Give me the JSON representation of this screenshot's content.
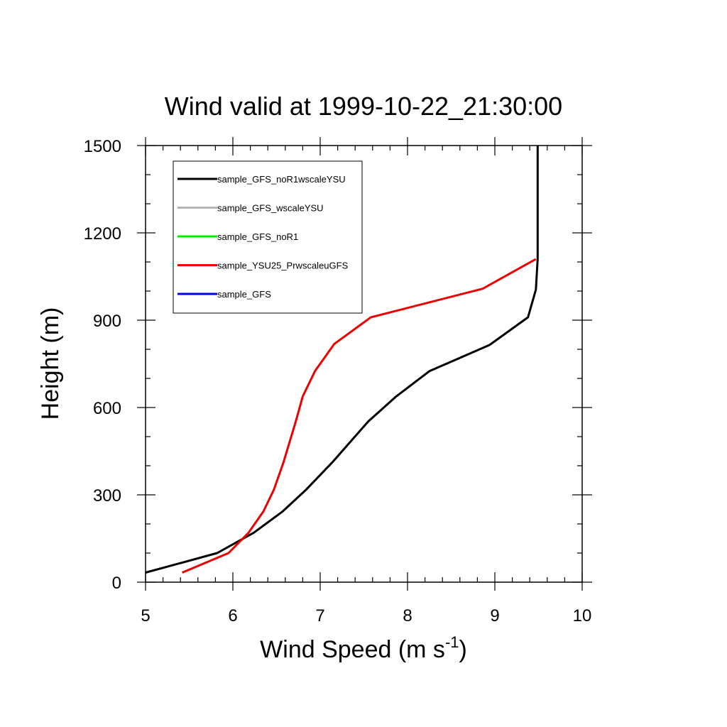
{
  "chart_data": {
    "type": "line",
    "title": "Wind valid at 1999-10-22_21:30:00",
    "xlabel": "Wind Speed (m s",
    "xlabel_sup": "-1",
    "xlabel_end": ")",
    "ylabel": "Height (m)",
    "xlim": [
      5,
      10
    ],
    "ylim": [
      0,
      1500
    ],
    "xticks": [
      5,
      6,
      7,
      8,
      9,
      10
    ],
    "yticks": [
      0,
      300,
      600,
      900,
      1200,
      1500
    ],
    "legend_position": "top-left",
    "grid": false,
    "series": [
      {
        "name": "sample_GFS_noR1wscaleYSU",
        "color": "#000000",
        "points": [
          [
            5.0,
            33
          ],
          [
            5.82,
            100
          ],
          [
            6.24,
            170
          ],
          [
            6.57,
            243
          ],
          [
            6.84,
            318
          ],
          [
            7.14,
            412
          ],
          [
            7.55,
            552
          ],
          [
            7.87,
            638
          ],
          [
            8.25,
            725
          ],
          [
            8.94,
            815
          ],
          [
            9.38,
            910
          ],
          [
            9.47,
            1005
          ],
          [
            9.49,
            1110
          ],
          [
            9.49,
            1200
          ],
          [
            9.49,
            1300
          ],
          [
            9.49,
            1400
          ],
          [
            9.49,
            1500
          ]
        ]
      },
      {
        "name": "sample_GFS_wscaleYSU",
        "color": "#b4b4b4",
        "points": []
      },
      {
        "name": "sample_GFS_noR1",
        "color": "#00ee00",
        "points": []
      },
      {
        "name": "sample_YSU25_PrwscaleuGFS",
        "color": "#ee0000",
        "points": [
          [
            5.42,
            33
          ],
          [
            5.95,
            100
          ],
          [
            6.18,
            170
          ],
          [
            6.35,
            243
          ],
          [
            6.47,
            318
          ],
          [
            6.58,
            412
          ],
          [
            6.72,
            552
          ],
          [
            6.8,
            638
          ],
          [
            6.94,
            725
          ],
          [
            7.16,
            818
          ],
          [
            7.58,
            910
          ],
          [
            8.86,
            1008
          ],
          [
            9.47,
            1110
          ]
        ]
      },
      {
        "name": "sample_GFS",
        "color": "#0000ee",
        "points": []
      }
    ]
  }
}
